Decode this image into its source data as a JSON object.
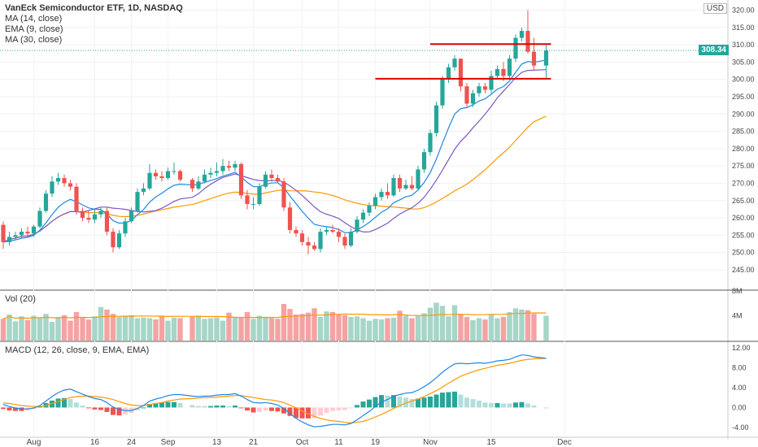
{
  "header": {
    "title": "VanEck Semiconductor ETF, 1D, NASDAQ",
    "ma14": "MA (14, close)",
    "ema9": "EMA (9, close)",
    "ma30": "MA (30, close)",
    "currency": "USD",
    "last_price": "308.34"
  },
  "volume_panel": {
    "label": "Vol (20)",
    "ticks": [
      "8M",
      "4M"
    ]
  },
  "macd_panel": {
    "label": "MACD (12, 26, close, 9, EMA, EMA)",
    "ticks": [
      "12.00",
      "8.00",
      "4.00",
      "0.00",
      "-4.00"
    ]
  },
  "colors": {
    "up": "#26a69a",
    "down": "#ef5350",
    "ma14": "#7e57c2",
    "ema9": "#1e88e5",
    "ma30": "#ff9800",
    "resistance": "#e00000",
    "vol_up": "#a5d6c8",
    "vol_down": "#f4a3a3",
    "macd_line": "#1e88e5",
    "signal_line": "#ff9800"
  },
  "chart_data": {
    "type": "candlestick",
    "title": "VanEck Semiconductor ETF, 1D, NASDAQ",
    "x_ticks": [
      "Aug",
      "16",
      "24",
      "Sep",
      "13",
      "21",
      "Oct",
      "11",
      "19",
      "Nov",
      "15",
      "Dec"
    ],
    "y_ticks": [
      "320.00",
      "315.00",
      "310.00",
      "305.00",
      "300.00",
      "295.00",
      "290.00",
      "285.00",
      "280.00",
      "275.00",
      "270.00",
      "265.00",
      "260.00",
      "255.00",
      "250.00",
      "245.00"
    ],
    "ylim": [
      241,
      322
    ],
    "x_label_dates": [
      "2021-08-02",
      "2021-08-16",
      "2021-08-24",
      "2021-09-01",
      "2021-09-13",
      "2021-09-21",
      "2021-10-01",
      "2021-10-11",
      "2021-10-19",
      "2021-11-01",
      "2021-11-15",
      "2021-12-01"
    ],
    "dates": [
      "2021-07-26",
      "2021-07-27",
      "2021-07-28",
      "2021-07-29",
      "2021-07-30",
      "2021-08-02",
      "2021-08-03",
      "2021-08-04",
      "2021-08-05",
      "2021-08-06",
      "2021-08-09",
      "2021-08-10",
      "2021-08-11",
      "2021-08-12",
      "2021-08-13",
      "2021-08-16",
      "2021-08-17",
      "2021-08-18",
      "2021-08-19",
      "2021-08-20",
      "2021-08-23",
      "2021-08-24",
      "2021-08-25",
      "2021-08-26",
      "2021-08-27",
      "2021-08-30",
      "2021-08-31",
      "2021-09-01",
      "2021-09-02",
      "2021-09-03",
      "2021-09-07",
      "2021-09-08",
      "2021-09-09",
      "2021-09-10",
      "2021-09-13",
      "2021-09-14",
      "2021-09-15",
      "2021-09-16",
      "2021-09-17",
      "2021-09-20",
      "2021-09-21",
      "2021-09-22",
      "2021-09-23",
      "2021-09-24",
      "2021-09-27",
      "2021-09-28",
      "2021-09-29",
      "2021-09-30",
      "2021-10-01",
      "2021-10-04",
      "2021-10-05",
      "2021-10-06",
      "2021-10-07",
      "2021-10-08",
      "2021-10-11",
      "2021-10-12",
      "2021-10-13",
      "2021-10-14",
      "2021-10-15",
      "2021-10-18",
      "2021-10-19",
      "2021-10-20",
      "2021-10-21",
      "2021-10-22",
      "2021-10-25",
      "2021-10-26",
      "2021-10-27",
      "2021-10-28",
      "2021-10-29",
      "2021-11-01",
      "2021-11-02",
      "2021-11-03",
      "2021-11-04",
      "2021-11-05",
      "2021-11-08",
      "2021-11-09",
      "2021-11-10",
      "2021-11-11",
      "2021-11-12",
      "2021-11-15",
      "2021-11-16",
      "2021-11-17",
      "2021-11-18",
      "2021-11-19",
      "2021-11-22",
      "2021-11-23",
      "2021-11-24",
      "2021-11-26"
    ],
    "open": [
      258,
      253,
      254.5,
      255,
      256,
      255.5,
      257.5,
      262,
      267,
      270.5,
      271.5,
      270,
      269,
      262,
      260,
      259.5,
      261,
      262,
      256,
      251.5,
      255.5,
      259,
      262,
      267.5,
      268.5,
      273,
      272,
      271.5,
      273.5,
      273.5,
      271,
      268.5,
      270.5,
      272.5,
      273,
      273.5,
      275,
      274.5,
      275.5,
      266.5,
      264,
      264,
      269,
      272.5,
      271.5,
      270.5,
      263,
      256.5,
      255.5,
      253,
      252,
      251,
      256,
      256.5,
      256,
      254.5,
      252,
      256,
      259.5,
      261.5,
      263.5,
      266,
      267.5,
      266.5,
      271.5,
      268.5,
      269.5,
      268.5,
      274,
      279,
      284.5,
      292.5,
      300,
      303.5,
      306,
      298,
      293,
      296,
      298,
      297,
      301,
      303,
      301,
      306,
      312,
      314,
      308,
      304
    ],
    "close": [
      253,
      254.5,
      255,
      256,
      255.5,
      257.5,
      262,
      267,
      270.5,
      271.5,
      270,
      269,
      262,
      260,
      259.5,
      261,
      262,
      256,
      251.5,
      255.5,
      259,
      262,
      267.5,
      268.5,
      273,
      272,
      271.5,
      273.5,
      273.5,
      271,
      268.5,
      270.5,
      272.5,
      273,
      273.5,
      275,
      274.5,
      275.5,
      266.5,
      264,
      264,
      269,
      272.5,
      271.5,
      270.5,
      263,
      256.5,
      255.5,
      253,
      252,
      251,
      256,
      256.5,
      256,
      254.5,
      252,
      256,
      259.5,
      261.5,
      263.5,
      266,
      267.5,
      266.5,
      271.5,
      268.5,
      269.5,
      268.5,
      274,
      279,
      284.5,
      292.5,
      300,
      303.5,
      306,
      298,
      293,
      296,
      298,
      297,
      301,
      303,
      301,
      306,
      312,
      314,
      308,
      304,
      308.34
    ],
    "high": [
      259,
      256,
      256,
      257,
      257.5,
      258,
      263,
      268,
      272,
      273,
      272.5,
      271,
      270,
      263,
      262,
      262.5,
      263,
      263,
      257,
      256.5,
      260,
      263,
      268.5,
      270,
      275.5,
      274,
      273.5,
      274.5,
      276,
      274,
      271.5,
      272,
      274,
      274.5,
      276,
      277,
      276.5,
      276.5,
      276,
      268,
      266,
      270,
      273.5,
      274,
      272.5,
      271.5,
      264.5,
      257.5,
      256.5,
      254.5,
      253,
      257,
      257.5,
      258,
      257,
      255.5,
      257,
      260.5,
      262.5,
      264.5,
      267,
      268.5,
      270,
      272.5,
      272.5,
      271,
      272,
      275,
      280,
      285.5,
      293.5,
      301,
      304.5,
      307,
      306,
      299,
      297,
      299,
      299,
      302.5,
      304,
      305,
      307,
      313,
      315,
      320,
      312,
      310
    ],
    "low": [
      251,
      252,
      253.5,
      254,
      254.5,
      254.5,
      257,
      261.5,
      266,
      269.5,
      269,
      268,
      261,
      259,
      258.5,
      258.5,
      260,
      255,
      250,
      251,
      254.5,
      258.5,
      261.5,
      266.5,
      268,
      271,
      270.5,
      271,
      272.5,
      270.5,
      267.5,
      268,
      270,
      271.5,
      272,
      272.5,
      273.5,
      273.5,
      265.5,
      262.5,
      262.5,
      263.5,
      268.5,
      270.5,
      270,
      262,
      255.5,
      254.5,
      252,
      249.5,
      250.5,
      250,
      255,
      255.5,
      253,
      251,
      251.5,
      255.5,
      258.5,
      260.5,
      262.5,
      265,
      265.5,
      266,
      267.5,
      268,
      268,
      268,
      273,
      278,
      283.5,
      291.5,
      299,
      302.5,
      296.5,
      292,
      292,
      295,
      296,
      296,
      300,
      299.5,
      300,
      305,
      311,
      307.5,
      302.5,
      300.5
    ],
    "resistance_levels": [
      {
        "y": 310.2,
        "from": "2021-11-01",
        "to": "2021-11-26"
      },
      {
        "y": 300.2,
        "from": "2021-10-19",
        "to": "2021-11-26"
      }
    ],
    "volume_ylim": [
      0,
      8
    ],
    "volume_m": [
      3.5,
      4.2,
      3.1,
      3.9,
      3.3,
      4.0,
      3.7,
      4.3,
      3.0,
      3.8,
      4.1,
      3.2,
      4.6,
      3.7,
      3.4,
      3.9,
      5.4,
      5.0,
      4.3,
      3.8,
      4.0,
      4.1,
      3.6,
      3.7,
      3.6,
      3.4,
      3.9,
      3.2,
      3.7,
      3.6,
      3.8,
      3.9,
      3.5,
      3.6,
      3.7,
      3.2,
      4.5,
      3.8,
      3.7,
      4.6,
      3.5,
      4.0,
      3.8,
      3.6,
      3.5,
      5.9,
      5.1,
      4.2,
      4.3,
      4.5,
      5.2,
      3.8,
      4.7,
      4.6,
      4.3,
      4.1,
      3.8,
      3.9,
      3.6,
      3.2,
      3.5,
      3.4,
      3.6,
      3.7,
      4.8,
      4.0,
      3.6,
      4.1,
      4.4,
      5.3,
      6.1,
      5.6,
      3.9,
      5.7,
      4.3,
      3.8,
      3.3,
      3.6,
      3.4,
      4.2,
      3.6,
      3.8,
      4.6,
      5.2,
      5.0,
      4.9,
      4.3,
      4.0
    ],
    "macd_ylim": [
      -5.5,
      13
    ],
    "macd_line": [
      0.6,
      0.2,
      -0.1,
      -0.3,
      -0.3,
      -0.1,
      0.4,
      1.3,
      2.2,
      3.0,
      3.5,
      3.7,
      3.2,
      2.7,
      2.2,
      1.8,
      1.6,
      1.0,
      0.1,
      -0.4,
      -0.6,
      -0.6,
      -0.2,
      0.4,
      1.3,
      1.7,
      2.0,
      2.4,
      2.6,
      2.6,
      2.3,
      2.2,
      2.3,
      2.3,
      2.5,
      2.6,
      2.6,
      2.8,
      2.3,
      1.6,
      1.0,
      0.9,
      1.0,
      0.8,
      0.5,
      -0.2,
      -1.2,
      -2.2,
      -2.9,
      -3.5,
      -3.9,
      -3.8,
      -3.6,
      -3.4,
      -3.4,
      -3.5,
      -3.2,
      -2.5,
      -1.6,
      -0.8,
      0.2,
      1.1,
      1.6,
      2.3,
      2.6,
      2.9,
      3.0,
      3.5,
      4.2,
      5.0,
      6.0,
      7.1,
      8.0,
      8.8,
      8.9,
      8.8,
      8.9,
      9.0,
      8.9,
      9.1,
      9.4,
      9.5,
      9.7,
      10.2,
      10.6,
      10.5,
      10.2,
      9.9
    ],
    "macd_signal": [
      0.9,
      0.8,
      0.6,
      0.4,
      0.3,
      0.2,
      0.2,
      0.4,
      0.8,
      1.2,
      1.6,
      2.0,
      2.2,
      2.3,
      2.3,
      2.2,
      2.1,
      1.9,
      1.6,
      1.2,
      0.8,
      0.5,
      0.4,
      0.4,
      0.6,
      0.8,
      1.0,
      1.3,
      1.5,
      1.7,
      1.8,
      1.9,
      2.0,
      2.0,
      2.1,
      2.2,
      2.3,
      2.4,
      2.4,
      2.2,
      2.0,
      1.8,
      1.6,
      1.5,
      1.3,
      1.0,
      0.5,
      -0.1,
      -0.7,
      -1.3,
      -1.8,
      -2.2,
      -2.5,
      -2.7,
      -2.8,
      -3.0,
      -3.1,
      -3.0,
      -2.8,
      -2.4,
      -1.9,
      -1.4,
      -0.8,
      -0.2,
      0.4,
      0.9,
      1.3,
      1.7,
      2.2,
      2.8,
      3.4,
      4.1,
      4.9,
      5.6,
      6.3,
      6.8,
      7.2,
      7.6,
      7.9,
      8.2,
      8.5,
      8.7,
      8.9,
      9.2,
      9.5,
      9.7,
      9.8,
      9.9
    ]
  }
}
